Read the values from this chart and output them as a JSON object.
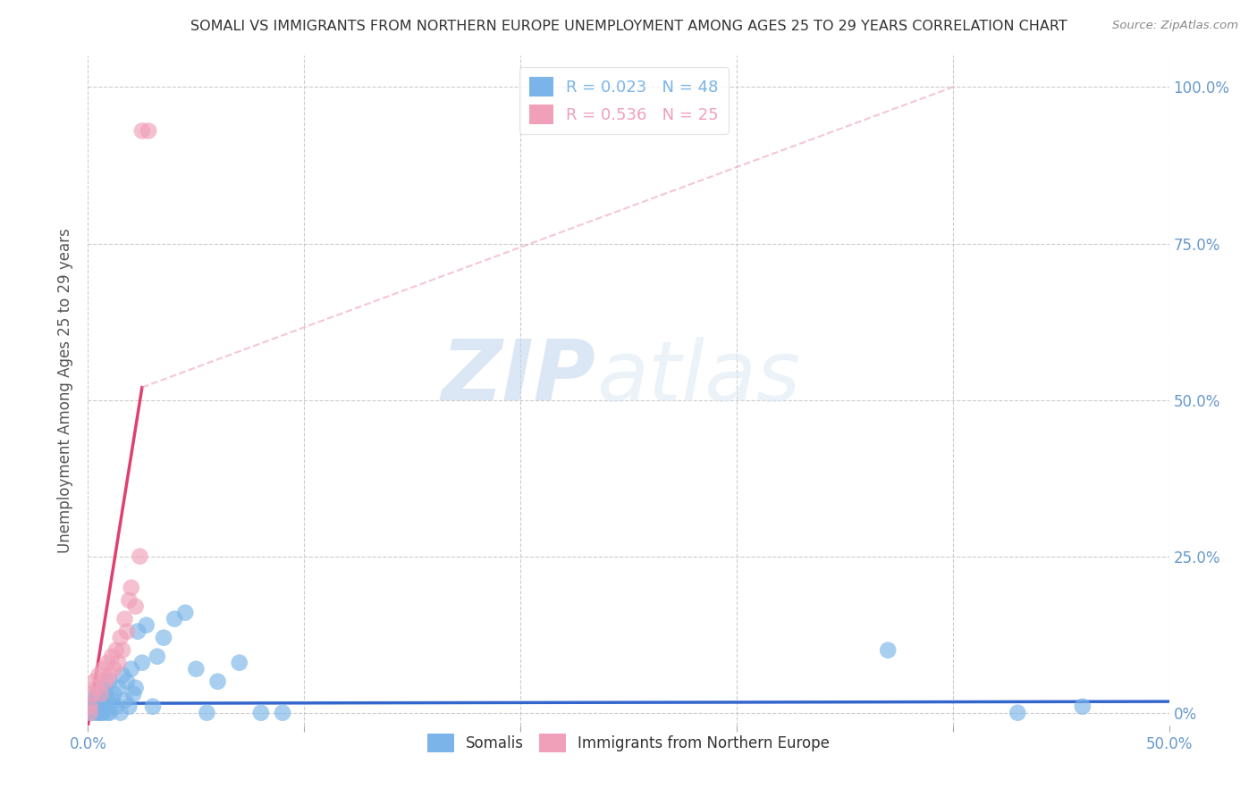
{
  "title": "SOMALI VS IMMIGRANTS FROM NORTHERN EUROPE UNEMPLOYMENT AMONG AGES 25 TO 29 YEARS CORRELATION CHART",
  "source": "Source: ZipAtlas.com",
  "ylabel": "Unemployment Among Ages 25 to 29 years",
  "xlim": [
    0.0,
    0.5
  ],
  "ylim": [
    -0.02,
    1.05
  ],
  "x_ticks": [
    0.0,
    0.1,
    0.2,
    0.3,
    0.4,
    0.5
  ],
  "x_tick_labels_ends": {
    "0.0": "0.0%",
    "0.50": "50.0%"
  },
  "y_ticks": [
    0.0,
    0.25,
    0.5,
    0.75,
    1.0
  ],
  "y_tick_labels_right": [
    "0%",
    "25.0%",
    "50.0%",
    "75.0%",
    "100.0%"
  ],
  "legend_entries": [
    {
      "label": "R = 0.023   N = 48",
      "color": "#7ab4e8"
    },
    {
      "label": "R = 0.536   N = 25",
      "color": "#f0a0b8"
    }
  ],
  "somali_scatter": {
    "color": "#7ab4e8",
    "x": [
      0.001,
      0.001,
      0.002,
      0.003,
      0.003,
      0.004,
      0.004,
      0.005,
      0.005,
      0.006,
      0.006,
      0.007,
      0.007,
      0.008,
      0.008,
      0.009,
      0.009,
      0.01,
      0.01,
      0.011,
      0.012,
      0.013,
      0.014,
      0.015,
      0.016,
      0.017,
      0.018,
      0.019,
      0.02,
      0.021,
      0.022,
      0.023,
      0.025,
      0.027,
      0.03,
      0.032,
      0.035,
      0.04,
      0.045,
      0.05,
      0.055,
      0.06,
      0.07,
      0.08,
      0.09,
      0.37,
      0.43,
      0.46
    ],
    "y": [
      0.0,
      0.01,
      0.0,
      0.01,
      0.02,
      0.0,
      0.03,
      0.0,
      0.02,
      0.0,
      0.01,
      0.0,
      0.04,
      0.01,
      0.03,
      0.0,
      0.02,
      0.0,
      0.05,
      0.02,
      0.03,
      0.01,
      0.04,
      0.0,
      0.06,
      0.02,
      0.05,
      0.01,
      0.07,
      0.03,
      0.04,
      0.13,
      0.08,
      0.14,
      0.01,
      0.09,
      0.12,
      0.15,
      0.16,
      0.07,
      0.0,
      0.05,
      0.08,
      0.0,
      0.0,
      0.1,
      0.0,
      0.01
    ]
  },
  "northern_europe_scatter": {
    "color": "#f0a0b8",
    "x": [
      0.001,
      0.001,
      0.002,
      0.003,
      0.004,
      0.005,
      0.006,
      0.007,
      0.008,
      0.009,
      0.01,
      0.011,
      0.012,
      0.013,
      0.014,
      0.015,
      0.016,
      0.017,
      0.018,
      0.019,
      0.02,
      0.022,
      0.024,
      0.025,
      0.028
    ],
    "y": [
      0.0,
      0.01,
      0.03,
      0.05,
      0.04,
      0.06,
      0.03,
      0.07,
      0.05,
      0.08,
      0.06,
      0.09,
      0.07,
      0.1,
      0.08,
      0.12,
      0.1,
      0.15,
      0.13,
      0.18,
      0.2,
      0.17,
      0.25,
      0.93,
      0.93
    ]
  },
  "somali_trend": {
    "color": "#3366cc",
    "x": [
      0.0,
      0.5
    ],
    "y": [
      0.015,
      0.018
    ]
  },
  "northern_europe_trend_solid": {
    "color": "#e04070",
    "x": [
      0.0,
      0.025
    ],
    "y": [
      -0.02,
      0.52
    ]
  },
  "northern_europe_trend_dashed": {
    "color": "#f0a0b8",
    "x": [
      0.025,
      0.4
    ],
    "y": [
      0.52,
      1.0
    ]
  },
  "watermark_zip": "ZIP",
  "watermark_atlas": "atlas",
  "title_color": "#333333",
  "axis_color": "#6699cc",
  "background_color": "#ffffff",
  "grid_color": "#cccccc"
}
